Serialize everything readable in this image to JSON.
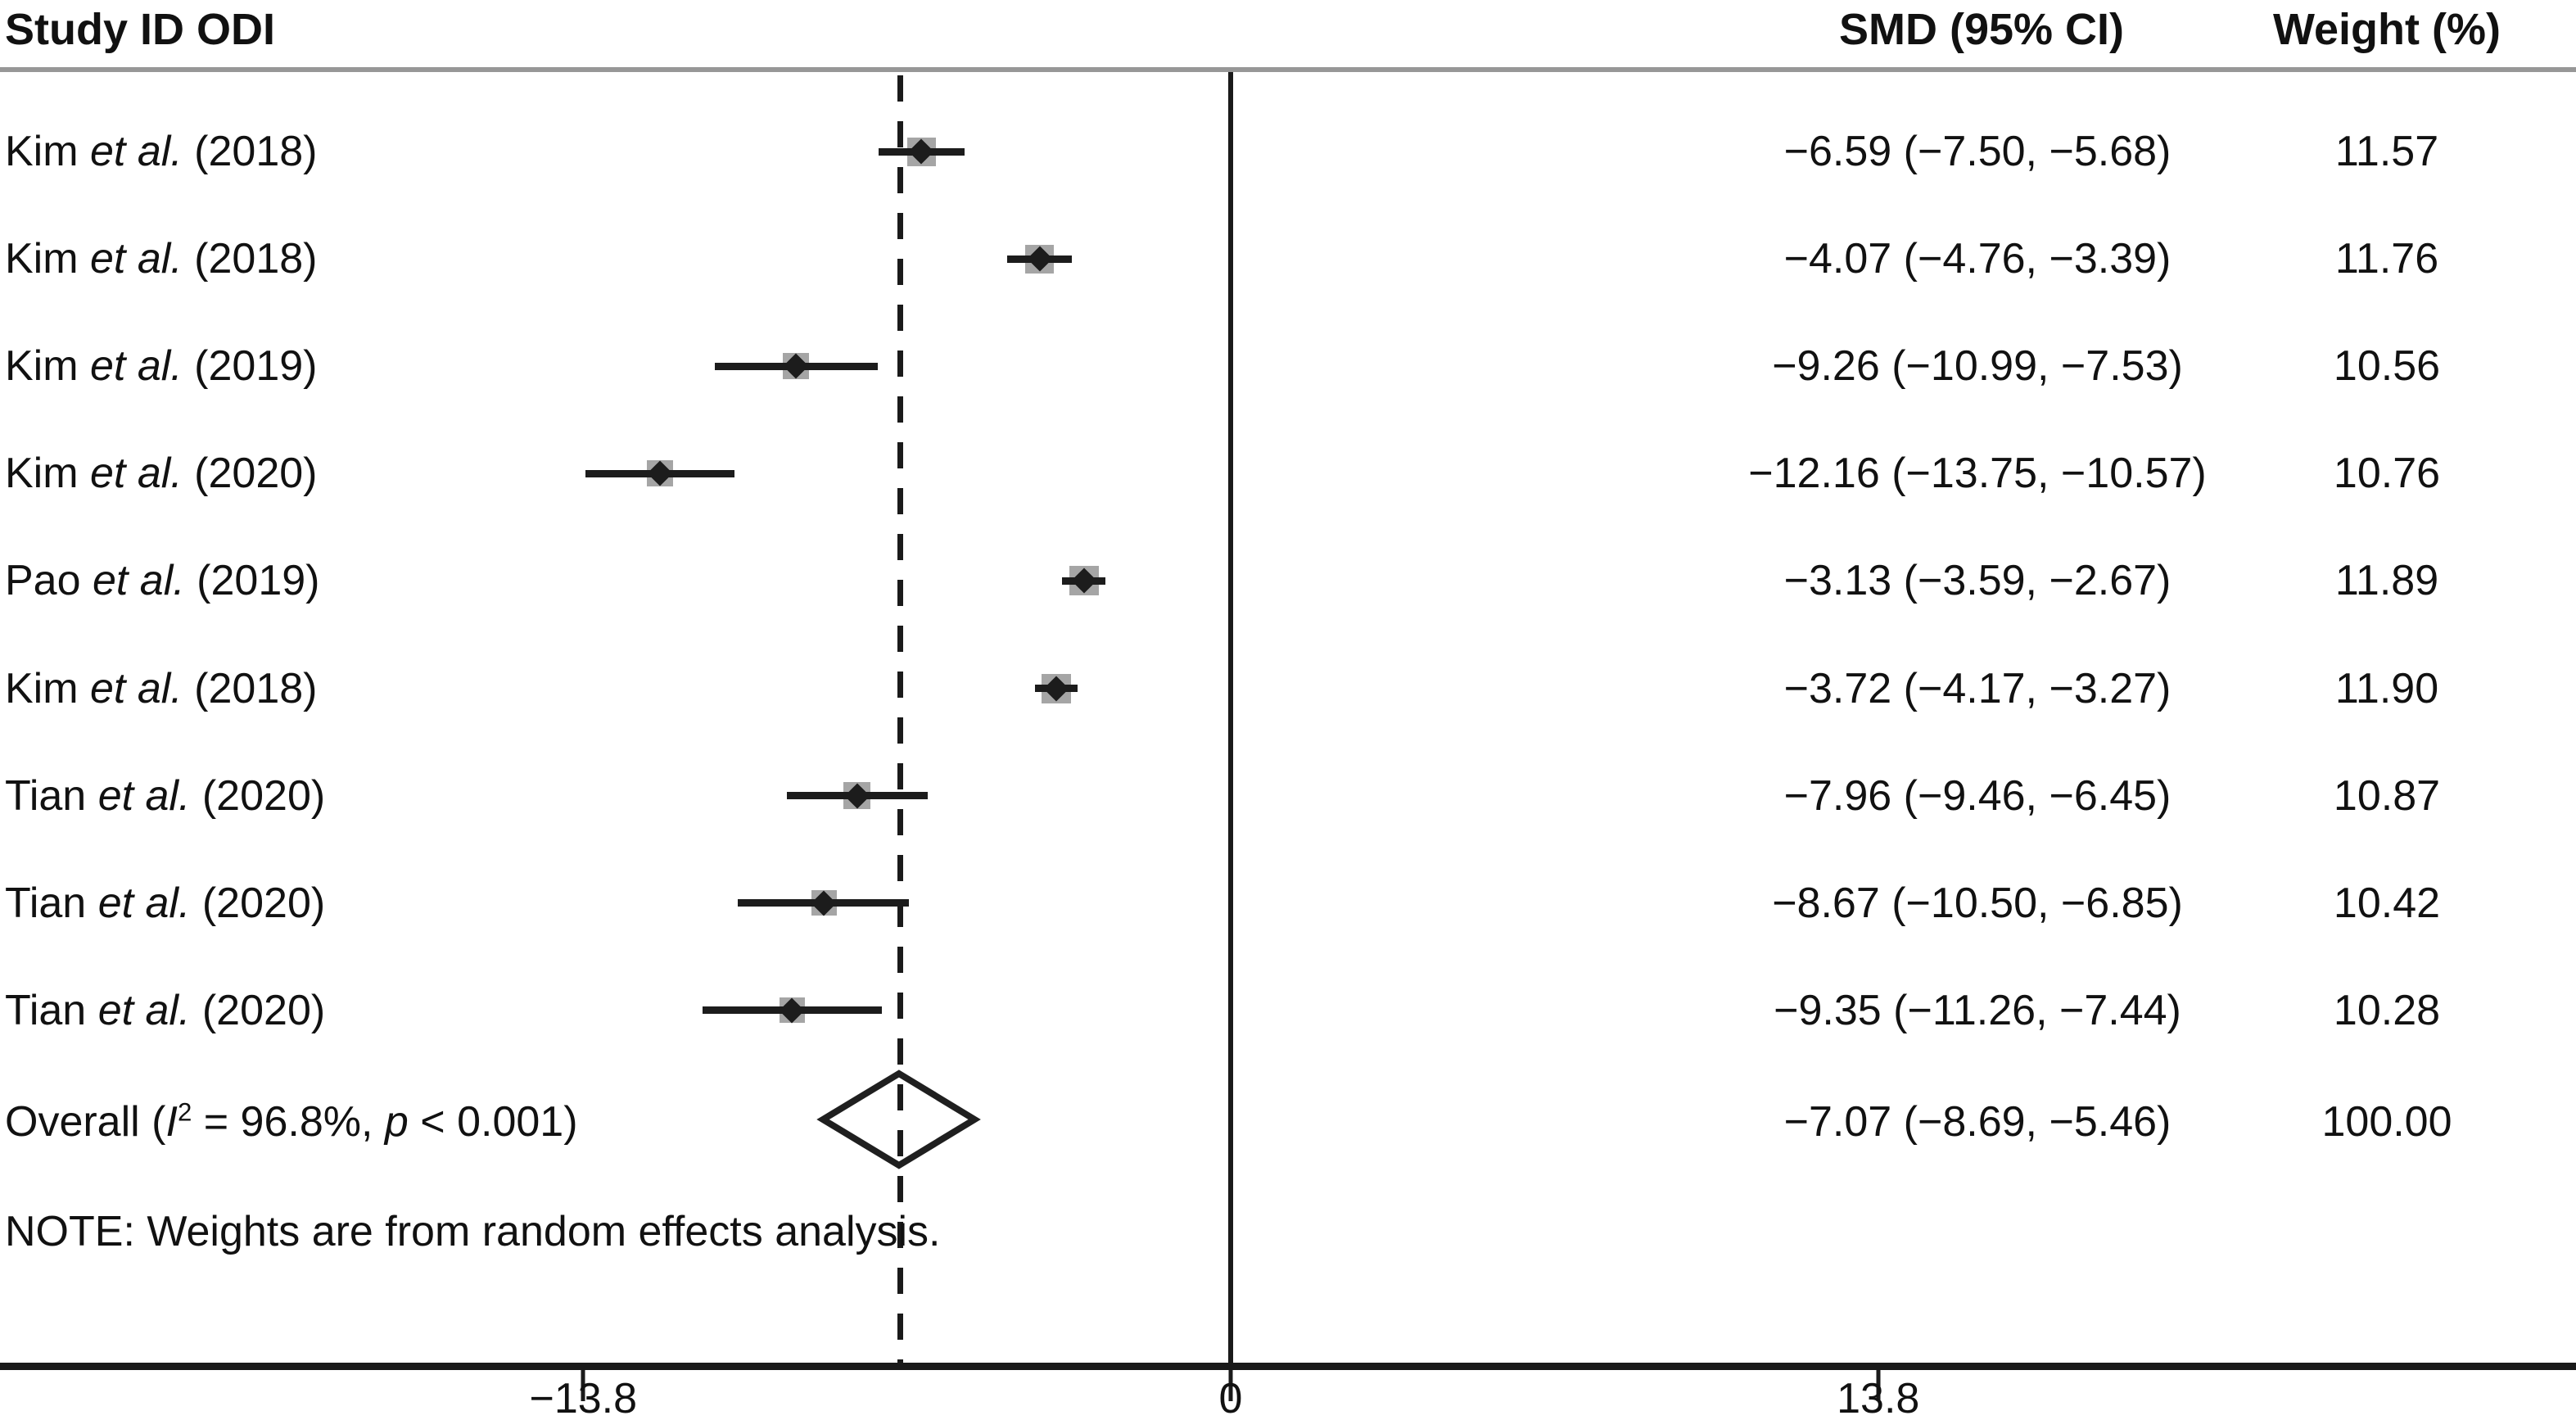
{
  "header": {
    "study_col": "Study ID ODI",
    "smd_col": "SMD (95% CI)",
    "weight_col": "Weight (%)"
  },
  "note": "NOTE: Weights are from random effects analysis.",
  "overall_label": {
    "pre": "Overall (",
    "i_stat": "I",
    "i_sup": "2",
    "mid": " = 96.8%, ",
    "p_stat": "p",
    "post": " < 0.001)"
  },
  "chart_data": {
    "type": "forest",
    "title": "Forest plot of SMD (ODI) with 95% CI by study",
    "x_axis": {
      "ticks": [
        {
          "value": -13.8,
          "label": "−13.8"
        },
        {
          "value": 0,
          "label": "0"
        },
        {
          "value": 13.8,
          "label": "13.8"
        }
      ],
      "range_shown": [
        -13.8,
        13.8
      ],
      "zero_line_value": 0,
      "overall_dashed_line_value": -7.07
    },
    "studies": [
      {
        "author": "Kim",
        "etal": "et al.",
        "year": "(2018)",
        "label": "Kim et al. (2018)",
        "smd": -6.59,
        "ci_lo": -7.5,
        "ci_hi": -5.68,
        "smd_text": "−6.59 (−7.50, −5.68)",
        "weight": 11.57,
        "weight_text": "11.57"
      },
      {
        "author": "Kim",
        "etal": "et al.",
        "year": "(2018)",
        "label": "Kim et al. (2018)",
        "smd": -4.07,
        "ci_lo": -4.76,
        "ci_hi": -3.39,
        "smd_text": "−4.07 (−4.76, −3.39)",
        "weight": 11.76,
        "weight_text": "11.76"
      },
      {
        "author": "Kim",
        "etal": "et al.",
        "year": "(2019)",
        "label": "Kim et al. (2019)",
        "smd": -9.26,
        "ci_lo": -10.99,
        "ci_hi": -7.53,
        "smd_text": "−9.26 (−10.99, −7.53)",
        "weight": 10.56,
        "weight_text": "10.56"
      },
      {
        "author": "Kim",
        "etal": "et al.",
        "year": "(2020)",
        "label": "Kim et al. (2020)",
        "smd": -12.16,
        "ci_lo": -13.75,
        "ci_hi": -10.57,
        "smd_text": "−12.16 (−13.75, −10.57)",
        "weight": 10.76,
        "weight_text": "10.76"
      },
      {
        "author": "Pao",
        "etal": "et al.",
        "year": "(2019)",
        "label": "Pao et al. (2019)",
        "smd": -3.13,
        "ci_lo": -3.59,
        "ci_hi": -2.67,
        "smd_text": "−3.13 (−3.59, −2.67)",
        "weight": 11.89,
        "weight_text": "11.89"
      },
      {
        "author": "Kim",
        "etal": "et al.",
        "year": "(2018)",
        "label": "Kim et al. (2018)",
        "smd": -3.72,
        "ci_lo": -4.17,
        "ci_hi": -3.27,
        "smd_text": "−3.72 (−4.17, −3.27)",
        "weight": 11.9,
        "weight_text": "11.90"
      },
      {
        "author": "Tian",
        "etal": "et al.",
        "year": "(2020)",
        "label": "Tian et al. (2020)",
        "smd": -7.96,
        "ci_lo": -9.46,
        "ci_hi": -6.45,
        "smd_text": "−7.96 (−9.46, −6.45)",
        "weight": 10.87,
        "weight_text": "10.87"
      },
      {
        "author": "Tian",
        "etal": "et al.",
        "year": "(2020)",
        "label": "Tian et al. (2020)",
        "smd": -8.67,
        "ci_lo": -10.5,
        "ci_hi": -6.85,
        "smd_text": "−8.67 (−10.50, −6.85)",
        "weight": 10.42,
        "weight_text": "10.42"
      },
      {
        "author": "Tian",
        "etal": "et al.",
        "year": "(2020)",
        "label": "Tian et al. (2020)",
        "smd": -9.35,
        "ci_lo": -11.26,
        "ci_hi": -7.44,
        "smd_text": "−9.35 (−11.26, −7.44)",
        "weight": 10.28,
        "weight_text": "10.28"
      }
    ],
    "overall": {
      "label": "Overall (I² = 96.8%, p < 0.001)",
      "i_squared": "96.8%",
      "p_value": "< 0.001",
      "smd": -7.07,
      "ci_lo": -8.69,
      "ci_hi": -5.46,
      "smd_text": "−7.07 (−8.69, −5.46)",
      "weight_text": "100.00"
    },
    "colors": {
      "text": "#111111",
      "line": "#1a1a1a",
      "weight_box": "#a5a5a5",
      "separator": "#979797",
      "background": "#ffffff"
    }
  }
}
